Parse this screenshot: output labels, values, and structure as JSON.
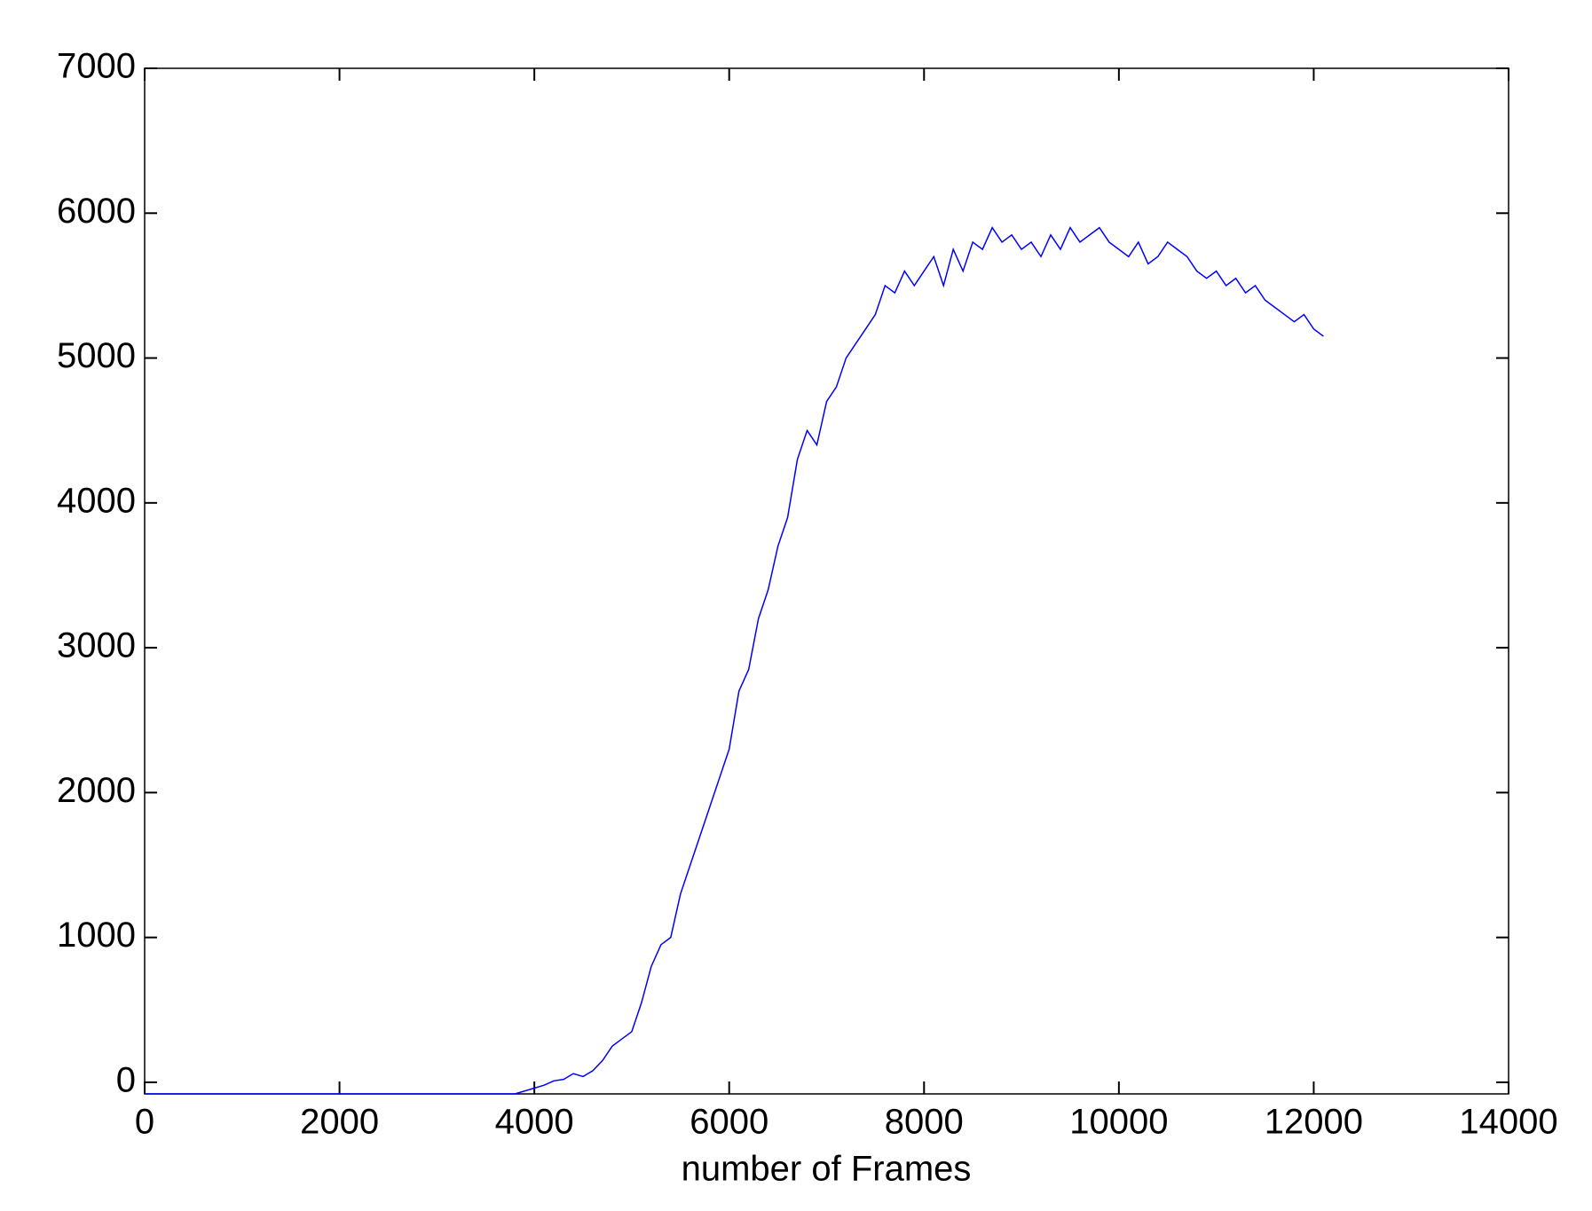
{
  "chart_data": {
    "type": "line",
    "x_label": "number of Frames",
    "x": [
      0,
      100,
      200,
      300,
      400,
      500,
      600,
      700,
      800,
      900,
      1000,
      1100,
      1200,
      1300,
      1400,
      1500,
      1600,
      1700,
      1800,
      1900,
      2000,
      2100,
      2200,
      2300,
      2400,
      2500,
      2600,
      2700,
      2800,
      2900,
      3000,
      3100,
      3200,
      3300,
      3400,
      3500,
      3600,
      3700,
      3800,
      3900,
      4000,
      4100,
      4200,
      4300,
      4400,
      4500,
      4600,
      4700,
      4800,
      4900,
      5000,
      5100,
      5200,
      5300,
      5400,
      5500,
      5600,
      5700,
      5800,
      5900,
      6000,
      6100,
      6200,
      6300,
      6400,
      6500,
      6600,
      6700,
      6800,
      6900,
      7000,
      7100,
      7200,
      7300,
      7400,
      7500,
      7600,
      7700,
      7800,
      7900,
      8000,
      8100,
      8200,
      8300,
      8400,
      8500,
      8600,
      8700,
      8800,
      8900,
      9000,
      9100,
      9200,
      9300,
      9400,
      9500,
      9600,
      9700,
      9800,
      9900,
      10000,
      10100,
      10200,
      10300,
      10400,
      10500,
      10600,
      10700,
      10800,
      10900,
      11000,
      11100,
      11200,
      11300,
      11400,
      11500,
      11600,
      11700,
      11800,
      11900,
      12000,
      12100
    ],
    "series": [
      {
        "color": "#0000ff",
        "values": [
          -80,
          -80,
          -80,
          -80,
          -80,
          -80,
          -80,
          -80,
          -80,
          -80,
          -80,
          -80,
          -80,
          -80,
          -80,
          -80,
          -80,
          -80,
          -80,
          -80,
          -80,
          -80,
          -80,
          -80,
          -80,
          -80,
          -80,
          -80,
          -80,
          -80,
          -80,
          -80,
          -80,
          -80,
          -80,
          -80,
          -80,
          -80,
          -80,
          -60,
          -40,
          -20,
          10,
          20,
          60,
          40,
          80,
          150,
          250,
          300,
          350,
          550,
          800,
          950,
          1000,
          1300,
          1500,
          1700,
          1900,
          2100,
          2300,
          2700,
          2850,
          3200,
          3400,
          3700,
          3900,
          4300,
          4500,
          4400,
          4700,
          4800,
          5000,
          5100,
          5200,
          5300,
          5500,
          5450,
          5600,
          5500,
          5600,
          5700,
          5500,
          5750,
          5600,
          5800,
          5750,
          5900,
          5800,
          5850,
          5750,
          5800,
          5700,
          5850,
          5750,
          5900,
          5800,
          5850,
          5900,
          5800,
          5750,
          5700,
          5800,
          5650,
          5700,
          5800,
          5750,
          5700,
          5600,
          5550,
          5600,
          5500,
          5550,
          5450,
          5500,
          5400,
          5350,
          5300,
          5250,
          5300,
          5200,
          5150
        ]
      }
    ],
    "xlim": [
      0,
      14000
    ],
    "xticks": [
      0,
      2000,
      4000,
      6000,
      8000,
      10000,
      12000,
      14000
    ],
    "ylim": [
      -80,
      7000
    ],
    "yticks": [
      0,
      1000,
      2000,
      3000,
      4000,
      5000,
      6000,
      7000
    ]
  }
}
